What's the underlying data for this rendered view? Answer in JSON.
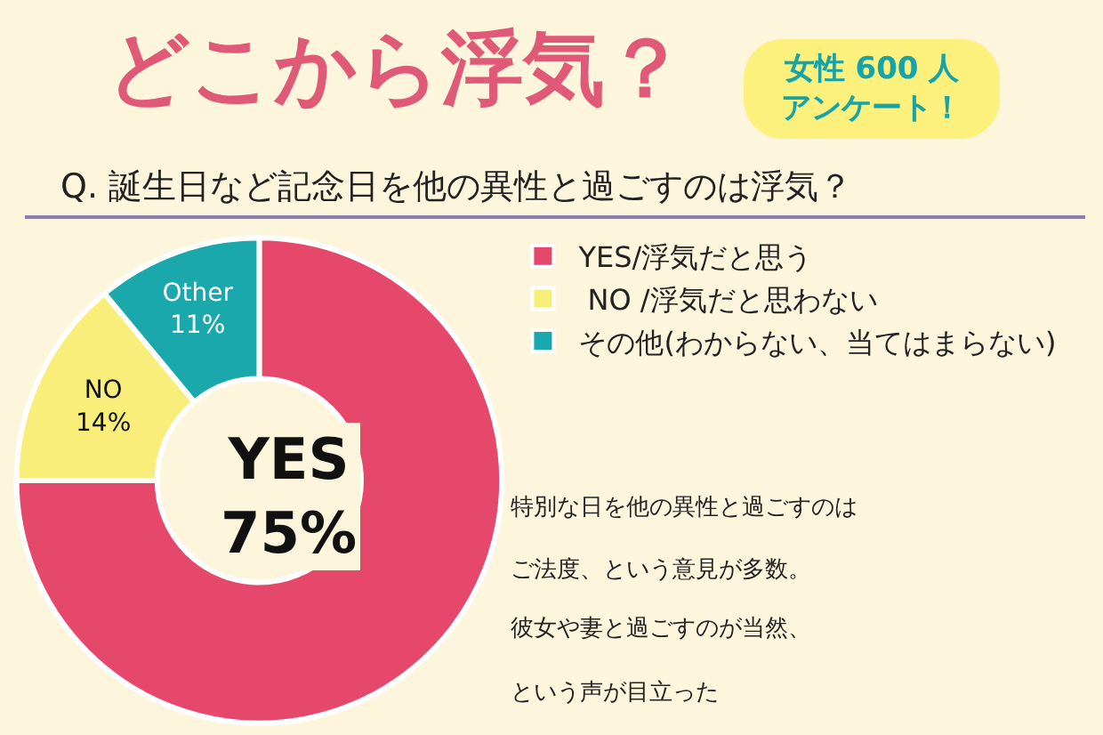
{
  "chart_data": {
    "type": "donut",
    "title": "どこから浮気？",
    "subtitle": "女性 600 人アンケート！",
    "annotations": [
      "Q. 誕生日など記念日を他の異性と過ごすのは浮気？",
      "特別な日を他の異性と過ごすのは",
      "ご法度、という意見が多数。",
      "彼女や妻と過ごすのが当然、",
      "という声が目立った"
    ],
    "categories": [
      "YES/浮気だと思う",
      " NO /浮気だと思わない",
      "その他(わからない、当てはまらない)"
    ],
    "values": [
      75,
      14,
      11
    ],
    "colors": [
      "#e5486a",
      "#f9ee7a",
      "#1aa8ac"
    ],
    "value_labels": [
      "YES\n75%",
      "NO\n14%",
      "Other\n11%"
    ],
    "legend": "top right"
  }
}
